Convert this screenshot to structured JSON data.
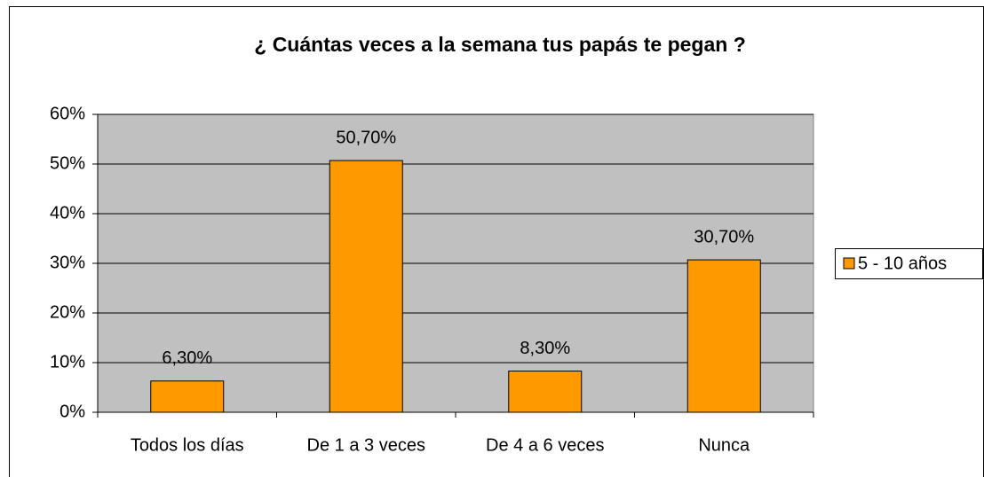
{
  "chart_data": {
    "type": "bar",
    "title": "¿ Cuántas veces a la semana tus papás te pegan ?",
    "categories": [
      "Todos los días",
      "De 1 a 3 veces",
      "De 4 a 6 veces",
      "Nunca"
    ],
    "series": [
      {
        "name": "5 - 10 años",
        "color": "#ff9900",
        "values": [
          6.3,
          50.7,
          8.3,
          30.7
        ],
        "value_labels": [
          "6,30%",
          "50,70%",
          "8,30%",
          "30,70%"
        ]
      }
    ],
    "ylim": [
      0,
      60
    ],
    "yticks": [
      {
        "value": 0,
        "label": "0%"
      },
      {
        "value": 10,
        "label": "10%"
      },
      {
        "value": 20,
        "label": "20%"
      },
      {
        "value": 30,
        "label": "30%"
      },
      {
        "value": 40,
        "label": "40%"
      },
      {
        "value": 50,
        "label": "50%"
      },
      {
        "value": 60,
        "label": "60%"
      }
    ],
    "grid": true,
    "legend": "right"
  }
}
